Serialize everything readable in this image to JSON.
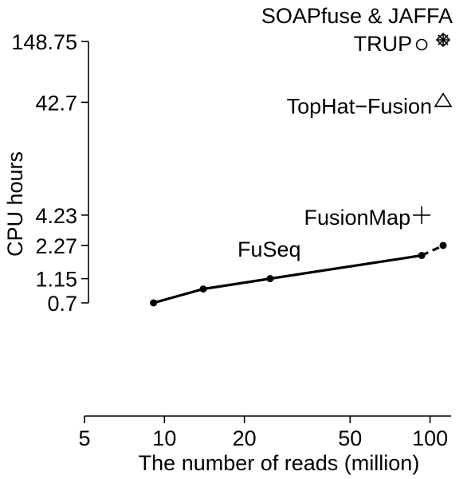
{
  "chart_data": {
    "type": "line",
    "xlabel": "The number of reads (million)",
    "ylabel": "CPU hours",
    "x_scale": "log",
    "y_scale": "log",
    "xlim": [
      5,
      120
    ],
    "ylim": [
      0.7,
      148.75
    ],
    "x_ticks": [
      "5",
      "10",
      "20",
      "50",
      "100"
    ],
    "y_ticks": [
      "148.75",
      "42.7",
      "4.23",
      "2.27",
      "1.15",
      "0.7"
    ],
    "grid": false,
    "series": [
      {
        "name": "FuSeq",
        "marker": "dot",
        "line": "solid",
        "points": [
          {
            "x": 9.1,
            "y": 0.7
          },
          {
            "x": 14,
            "y": 0.93
          },
          {
            "x": 25,
            "y": 1.15
          },
          {
            "x": 93,
            "y": 1.85
          },
          {
            "x": 112,
            "y": 2.27
          }
        ]
      }
    ],
    "single_points": [
      {
        "name": "SOAPfuse & JAFFA",
        "marker": "asterisk",
        "x": 112,
        "y": 148.75
      },
      {
        "name": "TRUP",
        "marker": "circle",
        "x": 93,
        "y": 148.75
      },
      {
        "name": "TopHat−Fusion",
        "marker": "triangle",
        "x": 112,
        "y": 42.7
      },
      {
        "name": "FusionMap",
        "marker": "plus",
        "x": 93,
        "y": 4.23
      }
    ]
  }
}
